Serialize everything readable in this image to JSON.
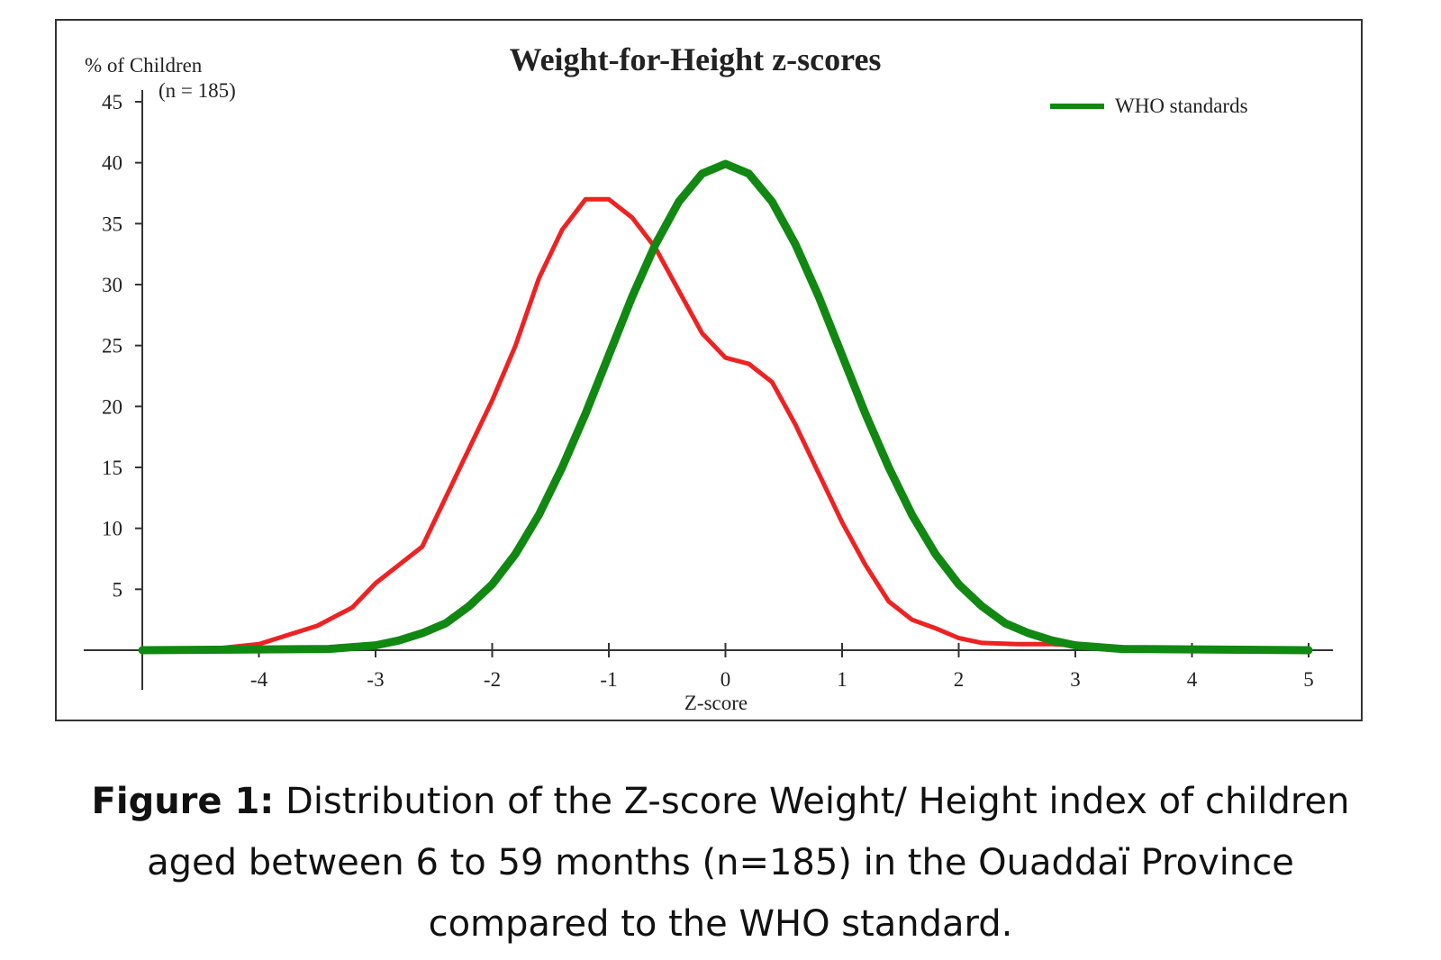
{
  "chart_data": {
    "type": "line",
    "title": "Weight-for-Height z-scores",
    "ylabel": "% of Children",
    "ylabel_note": "(n = 185)",
    "xlabel": "Z-score",
    "xlim": [
      -5,
      5
    ],
    "ylim": [
      0,
      45
    ],
    "x_ticks": [
      -4,
      -3,
      -2,
      -1,
      0,
      1,
      2,
      3,
      4,
      5
    ],
    "x_tick_labels": [
      "-4",
      "-3",
      "-2",
      "-1",
      "0",
      "1",
      "2",
      "3",
      "4",
      "5"
    ],
    "y_ticks": [
      5,
      10,
      15,
      20,
      25,
      30,
      35,
      40,
      45
    ],
    "y_tick_labels": [
      "5",
      "10",
      "15",
      "20",
      "25",
      "30",
      "35",
      "40",
      "45"
    ],
    "grid": false,
    "legend_position": "top-right",
    "legend": [
      {
        "label": "WHO standards",
        "color": "#118811"
      }
    ],
    "series": [
      {
        "color": "#ee2222",
        "x": [
          -5,
          -4.5,
          -4.0,
          -3.5,
          -3.2,
          -3.0,
          -2.8,
          -2.6,
          -2.4,
          -2.2,
          -2.0,
          -1.8,
          -1.6,
          -1.4,
          -1.2,
          -1.0,
          -0.8,
          -0.6,
          -0.4,
          -0.2,
          0.0,
          0.2,
          0.4,
          0.6,
          0.8,
          1.0,
          1.2,
          1.4,
          1.6,
          1.8,
          2.0,
          2.2,
          2.5,
          2.8,
          3.0,
          3.2,
          3.5
        ],
        "y": [
          0,
          0,
          0.5,
          2.0,
          3.5,
          5.5,
          7.0,
          8.5,
          12.5,
          16.5,
          20.5,
          25.0,
          30.5,
          34.5,
          37.0,
          37.0,
          35.5,
          33.0,
          29.5,
          26.0,
          24.0,
          23.5,
          22.0,
          18.5,
          14.5,
          10.5,
          7.0,
          4.0,
          2.5,
          1.8,
          1.0,
          0.6,
          0.5,
          0.5,
          0.4,
          0.3,
          0.2
        ]
      },
      {
        "name": "WHO standards",
        "color": "#118811",
        "mean": 0,
        "sd": 1,
        "x": [
          -5,
          -3.4,
          -3.0,
          -2.8,
          -2.6,
          -2.4,
          -2.2,
          -2.0,
          -1.8,
          -1.6,
          -1.4,
          -1.2,
          -1.0,
          -0.8,
          -0.6,
          -0.4,
          -0.2,
          0.0,
          0.2,
          0.4,
          0.6,
          0.8,
          1.0,
          1.2,
          1.4,
          1.6,
          1.8,
          2.0,
          2.2,
          2.4,
          2.6,
          2.8,
          3.0,
          3.4,
          5.0
        ],
        "y": [
          0,
          0.1,
          0.4,
          0.8,
          1.4,
          2.2,
          3.6,
          5.4,
          7.9,
          11.1,
          15.0,
          19.4,
          24.2,
          29.0,
          33.3,
          36.8,
          39.1,
          39.9,
          39.1,
          36.8,
          33.3,
          29.0,
          24.2,
          19.4,
          15.0,
          11.1,
          7.9,
          5.4,
          3.6,
          2.2,
          1.4,
          0.8,
          0.4,
          0.1,
          0
        ]
      }
    ]
  },
  "caption": {
    "label": "Figure 1:",
    "line1_text": "Distribution of the Z-score Weight/ Height index of children",
    "line2": "aged between 6 to 59 months (n=185) in the Ouaddaï Province",
    "line3": "compared to the WHO standard."
  }
}
